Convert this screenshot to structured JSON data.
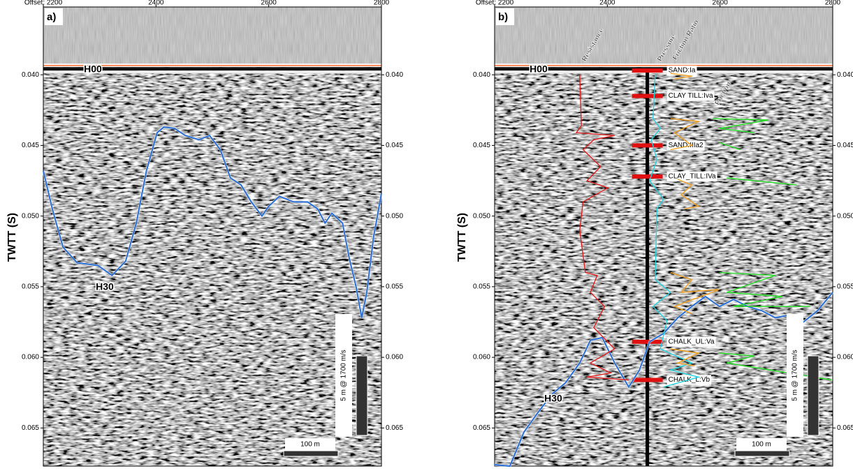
{
  "chart_data": [
    {
      "type": "line",
      "panel_label": "a)",
      "y_label": "TWTT (S)",
      "horizon_label": "H00",
      "scale_labels": [
        "100 m",
        "5 m @ 1700 m/s"
      ],
      "xlim": [
        2200,
        2800
      ],
      "ylim": [
        0.0352,
        0.0677
      ],
      "xticks": [
        {
          "value": 2200,
          "label": "Offset: 2200"
        },
        2400,
        2600,
        2800
      ],
      "yticks": [
        {
          "value": 0.04,
          "label": "0.040"
        },
        0.045,
        {
          "value": 0.05,
          "label": "0.050"
        },
        0.055,
        {
          "value": 0.06,
          "label": "0.060"
        },
        0.065
      ],
      "series": [
        {
          "name": "H30",
          "color": "#2a6fd6",
          "x": [
            2200,
            2216,
            2235,
            2260,
            2297,
            2322,
            2346,
            2365,
            2383,
            2402,
            2414,
            2433,
            2452,
            2476,
            2495,
            2514,
            2532,
            2551,
            2569,
            2588,
            2600,
            2619,
            2644,
            2669,
            2687,
            2700,
            2712,
            2731,
            2743,
            2755,
            2765,
            2774,
            2786,
            2800
          ],
          "values": [
            0.0468,
            0.0495,
            0.0522,
            0.0533,
            0.0535,
            0.0542,
            0.0532,
            0.0505,
            0.0468,
            0.0441,
            0.0437,
            0.0438,
            0.0443,
            0.0446,
            0.0443,
            0.0453,
            0.0473,
            0.0478,
            0.049,
            0.05,
            0.0493,
            0.0486,
            0.049,
            0.049,
            0.0495,
            0.0505,
            0.0498,
            0.0505,
            0.053,
            0.055,
            0.0572,
            0.0554,
            0.0515,
            0.0484
          ]
        }
      ]
    },
    {
      "type": "line",
      "panel_label": "b)",
      "y_label": "TWTT (S)",
      "horizon_label": "H00",
      "scale_labels": [
        "100 m",
        "5 m @ 1700 m/s"
      ],
      "xlim": [
        2200,
        2800
      ],
      "ylim": [
        0.0352,
        0.0677
      ],
      "xticks": [
        {
          "value": 2200,
          "label": "Offset: 2200"
        },
        2400,
        2600,
        2800
      ],
      "yticks": [
        {
          "value": 0.04,
          "label": "0.040"
        },
        0.045,
        {
          "value": 0.05,
          "label": "0.050"
        },
        0.055,
        {
          "value": 0.06,
          "label": "0.060"
        },
        0.065
      ],
      "borehole_offset": 2471,
      "layers": [
        {
          "text": "SAND:Ia",
          "twtt": 0.0397
        },
        {
          "text": "CLAY TILL:Iva",
          "twtt": 0.0415
        },
        {
          "text": "SAND:IIIa2",
          "twtt": 0.045
        },
        {
          "text": "CLAY_TILL:IVa",
          "twtt": 0.0472
        },
        {
          "text": "CHALK_UL:Va",
          "twtt": 0.0589
        },
        {
          "text": "CHALK_L:Vb",
          "twtt": 0.0616
        }
      ],
      "series": [
        {
          "name": "H30",
          "color": "#2a6fd6",
          "x": [
            2200,
            2227,
            2252,
            2277,
            2302,
            2326,
            2351,
            2370,
            2391,
            2413,
            2438,
            2457,
            2475,
            2500,
            2525,
            2550,
            2574,
            2599,
            2624,
            2649,
            2674,
            2698,
            2723,
            2748,
            2773,
            2800
          ],
          "values": [
            0.0676,
            0.0677,
            0.0653,
            0.0639,
            0.0626,
            0.0618,
            0.0604,
            0.0588,
            0.0586,
            0.0604,
            0.0621,
            0.0609,
            0.0589,
            0.0583,
            0.0572,
            0.0564,
            0.0557,
            0.0564,
            0.0559,
            0.0564,
            0.0567,
            0.0572,
            0.057,
            0.0575,
            0.0567,
            0.0554
          ]
        },
        {
          "name": "Resistance",
          "color": "#e02020",
          "x": [
            2351,
            2354,
            2345,
            2413,
            2376,
            2357,
            2388,
            2364,
            2401,
            2357,
            2351,
            2361,
            2382,
            2370,
            2395,
            2376,
            2413,
            2370,
            2406,
            2364,
            2438
          ],
          "values": [
            0.04,
            0.0436,
            0.0441,
            0.0443,
            0.0446,
            0.0453,
            0.0465,
            0.0475,
            0.048,
            0.049,
            0.051,
            0.054,
            0.0542,
            0.0554,
            0.0564,
            0.0579,
            0.0594,
            0.0604,
            0.0611,
            0.0614,
            0.0616
          ]
        },
        {
          "name": "Pressure",
          "color": "#22d3e0",
          "x": [
            2485,
            2481,
            2494,
            2478,
            2488,
            2475,
            2500,
            2488,
            2485,
            2512,
            2481,
            2506,
            2494,
            2550,
            2512,
            2562,
            2500
          ],
          "values": [
            0.04,
            0.0431,
            0.0438,
            0.0446,
            0.046,
            0.0475,
            0.0488,
            0.0495,
            0.0545,
            0.0554,
            0.0564,
            0.0574,
            0.0594,
            0.0604,
            0.0609,
            0.0614,
            0.0621
          ]
        },
        {
          "name": "Friction Ratio",
          "color": "#f0a020",
          "x": [
            2512,
            2550,
            2519,
            null,
            2512,
            2562,
            2519,
            2550,
            2512,
            null,
            2525,
            2550,
            2531,
            2562,
            2537,
            null,
            2512,
            2550,
            2531,
            2599,
            2519,
            2550,
            null,
            2512,
            2562,
            2525,
            2555
          ],
          "values": [
            0.0399,
            0.0401,
            0.0403,
            null,
            0.0431,
            0.0433,
            0.0441,
            0.045,
            0.0453,
            null,
            0.0474,
            0.0478,
            0.0485,
            0.0493,
            0.0495,
            null,
            0.054,
            0.0545,
            0.0554,
            0.0552,
            0.0564,
            0.0569,
            null,
            0.0594,
            0.0597,
            0.0604,
            0.0606
          ]
        },
        {
          "name": "Friction",
          "color": "#22dd22",
          "x": [
            2587,
            2686,
            2599,
            2661,
            null,
            2599,
            2636,
            null,
            2612,
            2736,
            null,
            2599,
            2698,
            2612,
            2711,
            2624,
            2760,
            null,
            2599,
            2661,
            2612,
            2798
          ],
          "values": [
            0.0431,
            0.0432,
            0.0438,
            0.0441,
            null,
            0.0448,
            0.0453,
            null,
            0.0473,
            0.0478,
            null,
            0.054,
            0.0542,
            0.0554,
            0.0557,
            0.0564,
            0.0564,
            null,
            0.0597,
            0.0599,
            0.0604,
            0.0616
          ]
        }
      ]
    }
  ]
}
